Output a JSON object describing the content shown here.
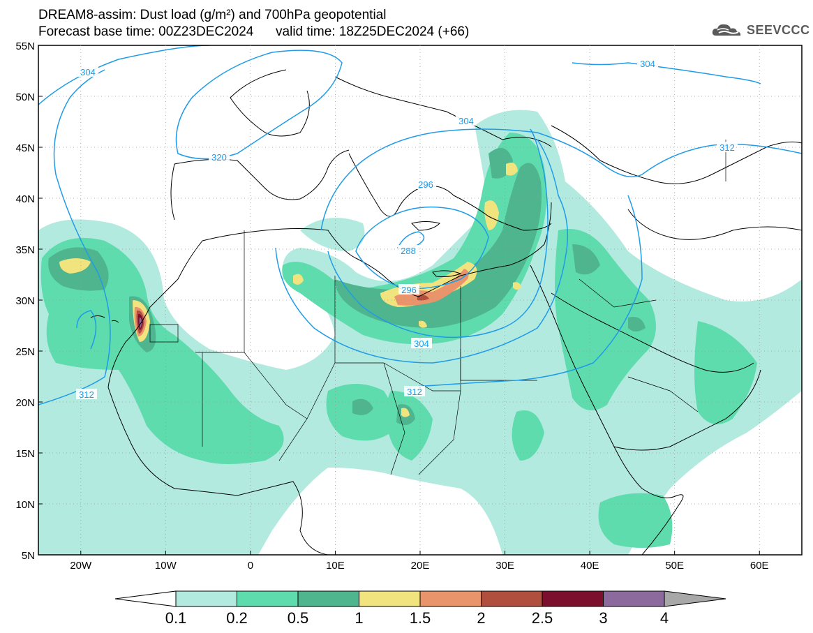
{
  "title": {
    "line1": "DREAM8-assim: Dust load (g/m²) and 700hPa geopotential",
    "line2": "Forecast base time: 00Z23DEC2024      valid time: 18Z25DEC2024 (+66)"
  },
  "logo": {
    "text": "SEEVCCC",
    "icon": "cloud-icon"
  },
  "map": {
    "lon_range": [
      -25,
      65
    ],
    "lat_range": [
      5,
      55
    ],
    "lat_ticks": [
      "55N",
      "50N",
      "45N",
      "40N",
      "35N",
      "30N",
      "25N",
      "20N",
      "15N",
      "10N",
      "5N"
    ],
    "lon_ticks": [
      "20W",
      "10W",
      "0",
      "10E",
      "20E",
      "30E",
      "40E",
      "50E",
      "60E"
    ],
    "contour_color": "#1f9be8",
    "contour_labels": [
      "304",
      "320",
      "304",
      "304",
      "312",
      "296",
      "288",
      "296",
      "304",
      "312",
      "312"
    ]
  },
  "colorbar": {
    "labels": [
      "0.1",
      "0.2",
      "0.5",
      "1",
      "1.5",
      "2",
      "2.5",
      "3",
      "4"
    ],
    "colors": [
      "#ffffff",
      "#b3eadf",
      "#5fdcad",
      "#4fb58f",
      "#f1e47f",
      "#e9946a",
      "#b04f3e",
      "#7c0f2e",
      "#8c6a9d",
      "#a8a8a8"
    ]
  }
}
